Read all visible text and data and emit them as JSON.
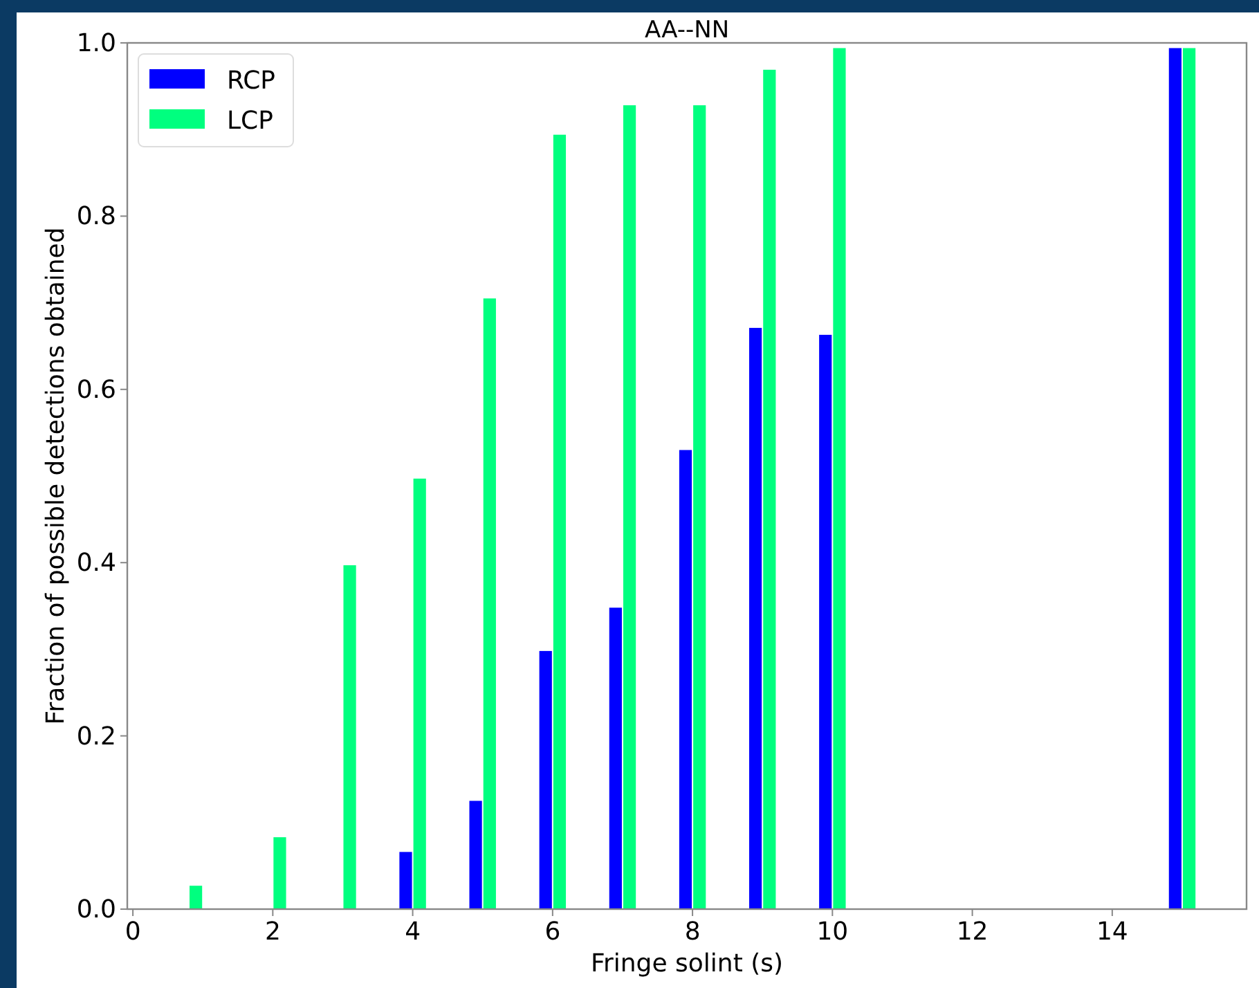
{
  "chart_data": {
    "type": "bar",
    "title": "AA--NN",
    "xlabel": "Fringe solint (s)",
    "ylabel": "Fraction of possible detections obtained",
    "xlim": [
      -0.08,
      15.92
    ],
    "xticks": [
      0,
      2,
      4,
      6,
      8,
      10,
      12,
      14
    ],
    "ylim": [
      0,
      1
    ],
    "yticks": [
      {
        "value": 0,
        "label": "0.0"
      },
      0.2,
      0.4,
      0.6,
      0.8,
      {
        "value": 1,
        "label": "1.0"
      }
    ],
    "grid": false,
    "legend": "top left",
    "series": [
      {
        "name": "RCP",
        "color": "#0000ff",
        "x": [
          3.9,
          4.9,
          5.9,
          6.9,
          7.9,
          8.9,
          9.9,
          14.9
        ],
        "values": [
          0.066,
          0.125,
          0.298,
          0.348,
          0.53,
          0.671,
          0.663,
          0.994
        ]
      },
      {
        "name": "LCP",
        "color": "#00ff7f",
        "x": [
          0.9,
          2.1,
          3.1,
          4.1,
          5.1,
          6.1,
          7.1,
          8.1,
          9.1,
          10.1,
          15.1
        ],
        "values": [
          0.027,
          0.083,
          0.397,
          0.497,
          0.705,
          0.894,
          0.928,
          0.928,
          0.969,
          0.994,
          0.994
        ]
      }
    ]
  }
}
